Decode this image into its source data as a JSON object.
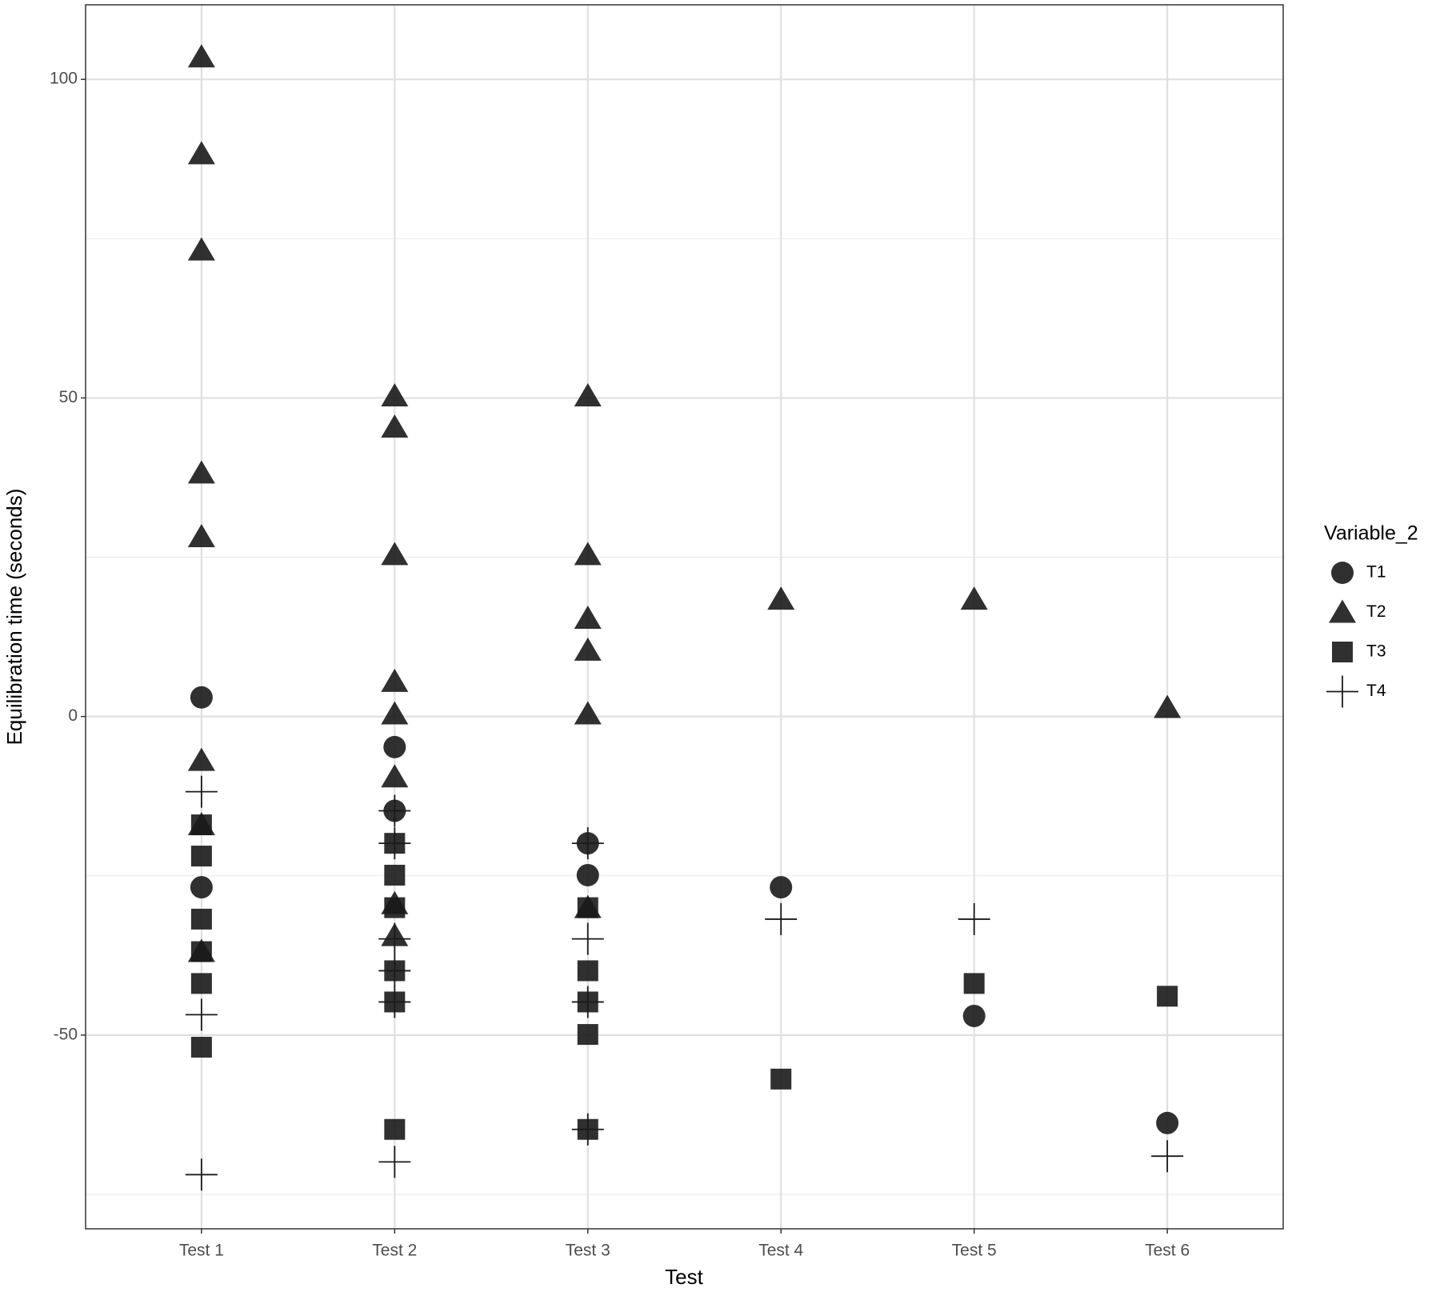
{
  "chart_data": {
    "type": "scatter",
    "x_label": "Test",
    "y_label": "Equilibration time (seconds)",
    "categories": [
      "Test 1",
      "Test 2",
      "Test 3",
      "Test 4",
      "Test 5",
      "Test 6"
    ],
    "ylim": [
      -80.4,
      111.7
    ],
    "yticks": [
      -50,
      0,
      50,
      100
    ],
    "minor_yticks": [
      -75,
      -25,
      25,
      75
    ],
    "grid": true,
    "legend_title": "Variable_2",
    "legend_position": "right",
    "series": [
      {
        "name": "T1",
        "shape": "circle",
        "color": "#1a1a1a",
        "x": [
          "Test 1",
          "Test 1",
          "Test 2",
          "Test 2",
          "Test 3",
          "Test 3",
          "Test 4",
          "Test 5",
          "Test 6"
        ],
        "values": [
          3.0,
          -26.8,
          -4.8,
          -14.8,
          -19.9,
          -24.9,
          -26.8,
          -47,
          -63.8
        ]
      },
      {
        "name": "T2",
        "shape": "triangle",
        "color": "#1a1a1a",
        "x": [
          "Test 1",
          "Test 1",
          "Test 1",
          "Test 1",
          "Test 1",
          "Test 1",
          "Test 1",
          "Test 1",
          "Test 2",
          "Test 2",
          "Test 2",
          "Test 2",
          "Test 2",
          "Test 2",
          "Test 2",
          "Test 2",
          "Test 3",
          "Test 3",
          "Test 3",
          "Test 3",
          "Test 3",
          "Test 3",
          "Test 4",
          "Test 5",
          "Test 6"
        ],
        "values": [
          103.5,
          88.3,
          73.2,
          38.2,
          28.2,
          -6.9,
          -17,
          -36.9,
          50.3,
          45.4,
          25.4,
          5.5,
          0.4,
          -9.5,
          -29.4,
          -34.4,
          50.3,
          25.4,
          15.4,
          10.4,
          0.4,
          -30,
          18.4,
          18.4,
          1.4
        ]
      },
      {
        "name": "T3",
        "shape": "square",
        "color": "#1a1a1a",
        "x": [
          "Test 1",
          "Test 1",
          "Test 1",
          "Test 1",
          "Test 1",
          "Test 1",
          "Test 2",
          "Test 2",
          "Test 2",
          "Test 2",
          "Test 2",
          "Test 2",
          "Test 3",
          "Test 3",
          "Test 3",
          "Test 3",
          "Test 3",
          "Test 4",
          "Test 5",
          "Test 6"
        ],
        "values": [
          -17,
          -21.9,
          -31.8,
          -36.9,
          -41.9,
          -51.9,
          -19.9,
          -24.9,
          -30,
          -39.9,
          -44.8,
          -64.8,
          -30,
          -39.9,
          -44.8,
          -49.9,
          -64.8,
          -56.9,
          -41.9,
          -43.9
        ]
      },
      {
        "name": "T4",
        "shape": "plus",
        "color": "#1a1a1a",
        "x": [
          "Test 1",
          "Test 1",
          "Test 1",
          "Test 2",
          "Test 2",
          "Test 2",
          "Test 2",
          "Test 2",
          "Test 2",
          "Test 3",
          "Test 3",
          "Test 3",
          "Test 3",
          "Test 4",
          "Test 5",
          "Test 6"
        ],
        "values": [
          -11.8,
          -46.8,
          -71.9,
          -14.8,
          -19.9,
          -34.9,
          -39.9,
          -44.8,
          -69.9,
          -19.9,
          -34.9,
          -44.8,
          -64.8,
          -31.8,
          -31.8,
          -69
        ]
      }
    ]
  }
}
